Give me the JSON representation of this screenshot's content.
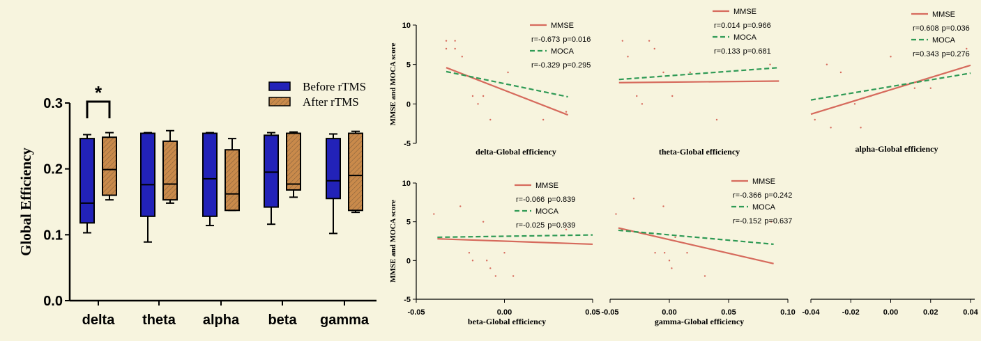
{
  "colors": {
    "background": "#f7f4de",
    "before": "#2222b8",
    "after": "#c98a4b",
    "mmse": "#d66a5c",
    "moca": "#2f9a55"
  },
  "chart_data": [
    {
      "type": "box",
      "ylabel": "Global Efficiency",
      "ylim": [
        0.0,
        0.3
      ],
      "yticks": [
        "0.0",
        "0.1",
        "0.2",
        "0.3"
      ],
      "categories": [
        "delta",
        "theta",
        "alpha",
        "beta",
        "gamma"
      ],
      "legend": {
        "position": "top-right",
        "entries": [
          "Before rTMS",
          "After rTMS"
        ]
      },
      "significance": {
        "category": "delta",
        "marker": "*"
      },
      "series": [
        {
          "name": "Before rTMS",
          "boxes": [
            {
              "min": 0.103,
              "q1": 0.118,
              "median": 0.148,
              "q3": 0.246,
              "max": 0.252
            },
            {
              "min": 0.089,
              "q1": 0.128,
              "median": 0.176,
              "q3": 0.254,
              "max": 0.255
            },
            {
              "min": 0.114,
              "q1": 0.128,
              "median": 0.185,
              "q3": 0.254,
              "max": 0.255
            },
            {
              "min": 0.116,
              "q1": 0.142,
              "median": 0.195,
              "q3": 0.251,
              "max": 0.255
            },
            {
              "min": 0.102,
              "q1": 0.155,
              "median": 0.182,
              "q3": 0.246,
              "max": 0.253
            }
          ]
        },
        {
          "name": "After rTMS",
          "boxes": [
            {
              "min": 0.153,
              "q1": 0.16,
              "median": 0.199,
              "q3": 0.248,
              "max": 0.255
            },
            {
              "min": 0.148,
              "q1": 0.153,
              "median": 0.177,
              "q3": 0.242,
              "max": 0.258
            },
            {
              "min": 0.137,
              "q1": 0.137,
              "median": 0.162,
              "q3": 0.229,
              "max": 0.246
            },
            {
              "min": 0.157,
              "q1": 0.168,
              "median": 0.177,
              "q3": 0.254,
              "max": 0.256
            },
            {
              "min": 0.134,
              "q1": 0.137,
              "median": 0.19,
              "q3": 0.254,
              "max": 0.257
            }
          ]
        }
      ]
    },
    {
      "type": "scatter",
      "title": "delta-Global efficiency",
      "ylabel": "MMSE and MOCA score",
      "ylim": [
        -5,
        10
      ],
      "yticks": [
        "10",
        "5",
        "0",
        "-5"
      ],
      "xlim": [
        -0.05,
        0.05
      ],
      "xticks": [],
      "legend": {
        "entries": [
          "MMSE",
          "MOCA"
        ],
        "stats": [
          {
            "r": "r=-0.673",
            "p": "p=0.016"
          },
          {
            "r": "r=-0.329",
            "p": "p=0.295"
          }
        ]
      },
      "lines": [
        {
          "name": "MMSE",
          "x": [
            -0.033,
            0.036
          ],
          "y": [
            4.6,
            -1.4
          ]
        },
        {
          "name": "MOCA",
          "x": [
            -0.033,
            0.036
          ],
          "y": [
            4.1,
            0.9
          ]
        }
      ],
      "points": [
        {
          "x": -0.033,
          "y": 8.0
        },
        {
          "x": -0.033,
          "y": 7.0
        },
        {
          "x": -0.028,
          "y": 8.0
        },
        {
          "x": -0.028,
          "y": 7.0
        },
        {
          "x": -0.024,
          "y": 6.0
        },
        {
          "x": -0.018,
          "y": 1.0
        },
        {
          "x": -0.015,
          "y": 0.0
        },
        {
          "x": -0.012,
          "y": 1.0
        },
        {
          "x": -0.008,
          "y": -2.0
        },
        {
          "x": 0.002,
          "y": 4.0
        },
        {
          "x": 0.022,
          "y": -2.0
        },
        {
          "x": 0.035,
          "y": -1.0
        }
      ]
    },
    {
      "type": "scatter",
      "title": "theta-Global efficiency",
      "ylabel": "",
      "ylim": [
        -5,
        10
      ],
      "yticks": [],
      "xlim": [
        -0.05,
        0.05
      ],
      "xticks": [],
      "legend": {
        "entries": [
          "MMSE",
          "MOCA"
        ],
        "stats": [
          {
            "r": "r=0.014",
            "p": "p=0.966"
          },
          {
            "r": "r=0.133",
            "p": "p=0.681"
          }
        ]
      },
      "lines": [
        {
          "name": "MMSE",
          "x": [
            -0.045,
            0.045
          ],
          "y": [
            2.7,
            2.9
          ]
        },
        {
          "name": "MOCA",
          "x": [
            -0.045,
            0.045
          ],
          "y": [
            3.1,
            4.6
          ]
        }
      ],
      "points": [
        {
          "x": -0.043,
          "y": 8.0
        },
        {
          "x": -0.04,
          "y": 6.0
        },
        {
          "x": -0.035,
          "y": 1.0
        },
        {
          "x": -0.032,
          "y": 0.0
        },
        {
          "x": -0.028,
          "y": 8.0
        },
        {
          "x": -0.025,
          "y": 7.0
        },
        {
          "x": -0.02,
          "y": 4.0
        },
        {
          "x": -0.015,
          "y": 1.0
        },
        {
          "x": -0.005,
          "y": 4.0
        },
        {
          "x": 0.01,
          "y": -2.0
        },
        {
          "x": 0.04,
          "y": 5.0
        }
      ]
    },
    {
      "type": "scatter",
      "title": "alpha-Global efficiency",
      "ylabel": "",
      "ylim": [
        -5,
        10
      ],
      "yticks": [],
      "xlim": [
        -0.04,
        0.04
      ],
      "xticks": [
        "-0.04",
        "-0.02",
        "0.00",
        "0.02",
        "0.04"
      ],
      "legend": {
        "entries": [
          "MMSE",
          "MOCA"
        ],
        "stats": [
          {
            "r": "r=0.608",
            "p": "p=0.036"
          },
          {
            "r": "r=0.343",
            "p": "p=0.276"
          }
        ]
      },
      "lines": [
        {
          "name": "MMSE",
          "x": [
            -0.04,
            0.04
          ],
          "y": [
            -1.3,
            4.9
          ]
        },
        {
          "name": "MOCA",
          "x": [
            -0.04,
            0.04
          ],
          "y": [
            0.5,
            3.9
          ]
        }
      ],
      "points": [
        {
          "x": -0.038,
          "y": -2.0
        },
        {
          "x": -0.032,
          "y": 5.0
        },
        {
          "x": -0.03,
          "y": -3.0
        },
        {
          "x": -0.025,
          "y": 4.0
        },
        {
          "x": -0.018,
          "y": 0.0
        },
        {
          "x": -0.015,
          "y": -3.0
        },
        {
          "x": -0.01,
          "y": 1.0
        },
        {
          "x": 0.0,
          "y": 6.0
        },
        {
          "x": 0.012,
          "y": 2.0
        },
        {
          "x": 0.02,
          "y": 2.0
        },
        {
          "x": 0.038,
          "y": 7.0
        }
      ]
    },
    {
      "type": "scatter",
      "title": "beta-Global efficiency",
      "ylabel": "MMSE and MOCA score",
      "ylim": [
        -5,
        10
      ],
      "yticks": [
        "10",
        "5",
        "0",
        "-5"
      ],
      "xlim": [
        -0.05,
        0.05
      ],
      "xticks": [
        "-0.05",
        "0.00",
        "0.05"
      ],
      "legend": {
        "entries": [
          "MMSE",
          "MOCA"
        ],
        "stats": [
          {
            "r": "r=-0.066",
            "p": "p=0.839"
          },
          {
            "r": "r=-0.025",
            "p": "p=0.939"
          }
        ]
      },
      "lines": [
        {
          "name": "MMSE",
          "x": [
            -0.038,
            0.05
          ],
          "y": [
            2.8,
            2.1
          ]
        },
        {
          "name": "MOCA",
          "x": [
            -0.038,
            0.05
          ],
          "y": [
            3.0,
            3.3
          ]
        }
      ],
      "points": [
        {
          "x": -0.04,
          "y": 6.0
        },
        {
          "x": -0.025,
          "y": 7.0
        },
        {
          "x": -0.02,
          "y": 1.0
        },
        {
          "x": -0.018,
          "y": 0.0
        },
        {
          "x": -0.012,
          "y": 5.0
        },
        {
          "x": -0.01,
          "y": 0.0
        },
        {
          "x": -0.008,
          "y": -1.0
        },
        {
          "x": -0.005,
          "y": -2.0
        },
        {
          "x": 0.0,
          "y": 1.0
        },
        {
          "x": 0.005,
          "y": -2.0
        },
        {
          "x": 0.035,
          "y": 4.0
        }
      ]
    },
    {
      "type": "scatter",
      "title": "gamma-Global efficiency",
      "ylabel": "",
      "ylim": [
        -5,
        10
      ],
      "yticks": [],
      "xlim": [
        -0.05,
        0.1
      ],
      "xticks": [
        "-0.05",
        "0.00",
        "0.05",
        "0.10"
      ],
      "legend": {
        "entries": [
          "MMSE",
          "MOCA"
        ],
        "stats": [
          {
            "r": "r=-0.366",
            "p": "p=0.242"
          },
          {
            "r": "r=-0.152",
            "p": "p=0.637"
          }
        ]
      },
      "lines": [
        {
          "name": "MMSE",
          "x": [
            -0.043,
            0.088
          ],
          "y": [
            4.2,
            -0.4
          ]
        },
        {
          "name": "MOCA",
          "x": [
            -0.043,
            0.088
          ],
          "y": [
            3.9,
            2.1
          ]
        }
      ],
      "points": [
        {
          "x": -0.045,
          "y": 6.0
        },
        {
          "x": -0.04,
          "y": 4.0
        },
        {
          "x": -0.03,
          "y": 8.0
        },
        {
          "x": -0.012,
          "y": 1.0
        },
        {
          "x": -0.005,
          "y": 7.0
        },
        {
          "x": -0.004,
          "y": 1.0
        },
        {
          "x": 0.0,
          "y": 0.0
        },
        {
          "x": 0.002,
          "y": -1.0
        },
        {
          "x": 0.005,
          "y": 3.0
        },
        {
          "x": 0.015,
          "y": 1.0
        },
        {
          "x": 0.03,
          "y": -2.0
        },
        {
          "x": 0.086,
          "y": 5.0
        }
      ]
    }
  ]
}
